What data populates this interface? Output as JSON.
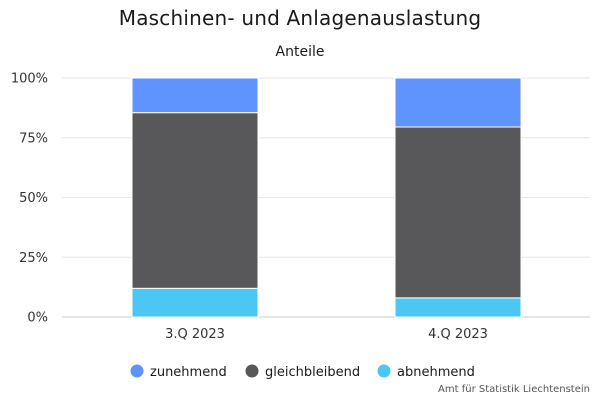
{
  "chart_data": {
    "type": "bar",
    "stacked": true,
    "title": "Maschinen- und Anlagenauslastung",
    "subtitle": "Anteile",
    "categories": [
      "3.Q 2023",
      "4.Q 2023"
    ],
    "series": [
      {
        "name": "abnehmend",
        "color": "#4cc6f3",
        "values": [
          12,
          8
        ]
      },
      {
        "name": "gleichbleibend",
        "color": "#58585a",
        "values": [
          73.5,
          71.5
        ]
      },
      {
        "name": "zunehmend",
        "color": "#5f93fd",
        "values": [
          14.5,
          20.5
        ]
      }
    ],
    "legend_order": [
      "zunehmend",
      "gleichbleibend",
      "abnehmend"
    ],
    "y_ticks": [
      "0%",
      "25%",
      "50%",
      "75%",
      "100%"
    ],
    "ylim": [
      0,
      100
    ],
    "grid": true,
    "legend_position": "bottom"
  },
  "credit": "Amt für Statistik Liechtenstein"
}
